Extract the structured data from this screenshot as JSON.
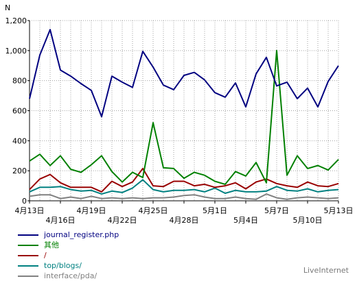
{
  "chart_data": {
    "type": "line",
    "ylabel": "N",
    "ylim": [
      0,
      1200
    ],
    "yticks": [
      0,
      200,
      400,
      600,
      800,
      1000,
      1200
    ],
    "ytick_labels": [
      "0",
      "200",
      "400",
      "600",
      "800",
      "1,000",
      "1,200"
    ],
    "x_tick_labels": [
      {
        "index": 0,
        "label": "4月13日",
        "row": 1
      },
      {
        "index": 3,
        "label": "4月16日",
        "row": 2
      },
      {
        "index": 6,
        "label": "4月19日",
        "row": 1
      },
      {
        "index": 9,
        "label": "4月22日",
        "row": 2
      },
      {
        "index": 12,
        "label": "4月25日",
        "row": 1
      },
      {
        "index": 15,
        "label": "4月28日",
        "row": 2
      },
      {
        "index": 18,
        "label": "5月1日",
        "row": 1
      },
      {
        "index": 21,
        "label": "5月4日",
        "row": 2
      },
      {
        "index": 24,
        "label": "5月7日",
        "row": 1
      },
      {
        "index": 27,
        "label": "5月10日",
        "row": 2
      },
      {
        "index": 30,
        "label": "5月13日",
        "row": 1
      }
    ],
    "grid": true,
    "legend_position": "bottom-left",
    "series": [
      {
        "name": "journal_register.php",
        "color": "#000080",
        "values": [
          680,
          970,
          1140,
          870,
          830,
          780,
          735,
          560,
          830,
          790,
          755,
          995,
          890,
          770,
          740,
          835,
          855,
          805,
          720,
          690,
          785,
          625,
          845,
          955,
          765,
          790,
          680,
          750,
          625,
          795,
          900
        ]
      },
      {
        "name": "其他",
        "color": "#008000",
        "values": [
          265,
          310,
          235,
          300,
          210,
          190,
          240,
          300,
          195,
          125,
          190,
          155,
          520,
          220,
          215,
          150,
          190,
          170,
          130,
          110,
          195,
          165,
          255,
          120,
          1000,
          170,
          300,
          215,
          235,
          205,
          275
        ]
      },
      {
        "name": "/",
        "color": "#990000",
        "values": [
          75,
          145,
          175,
          120,
          90,
          90,
          90,
          60,
          130,
          95,
          125,
          215,
          100,
          95,
          130,
          130,
          100,
          110,
          90,
          100,
          120,
          80,
          125,
          145,
          115,
          100,
          90,
          125,
          100,
          95,
          115
        ]
      },
      {
        "name": "top/blogs/",
        "color": "#008080",
        "values": [
          60,
          90,
          90,
          95,
          75,
          65,
          70,
          45,
          65,
          55,
          85,
          140,
          75,
          60,
          70,
          70,
          75,
          60,
          85,
          50,
          70,
          60,
          60,
          65,
          95,
          70,
          65,
          80,
          60,
          70,
          75
        ]
      },
      {
        "name": "interface/pda/",
        "color": "#808080",
        "values": [
          30,
          40,
          40,
          15,
          25,
          15,
          30,
          15,
          20,
          15,
          20,
          15,
          20,
          20,
          25,
          35,
          40,
          25,
          15,
          15,
          25,
          15,
          10,
          45,
          20,
          10,
          20,
          25,
          20,
          15,
          20
        ]
      }
    ]
  },
  "brand": "LiveInternet"
}
